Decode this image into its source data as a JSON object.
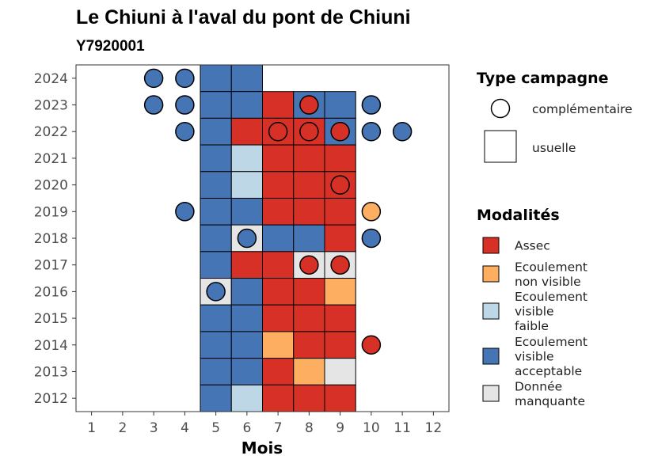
{
  "chart_data": {
    "type": "heatmap",
    "title": "Le Chiuni à l'aval du pont de Chiuni",
    "subtitle": "Y7920001",
    "xlabel": "Mois",
    "ylabel": "",
    "x_ticks": [
      "1",
      "2",
      "3",
      "4",
      "5",
      "6",
      "7",
      "8",
      "9",
      "10",
      "11",
      "12"
    ],
    "y_ticks": [
      "2012",
      "2013",
      "2014",
      "2015",
      "2016",
      "2017",
      "2018",
      "2019",
      "2020",
      "2021",
      "2022",
      "2023",
      "2024"
    ],
    "xlim": [
      0.5,
      12.5
    ],
    "ylim": [
      2011.5,
      2024.5
    ],
    "colors": {
      "Assec": "#d73027",
      "Ecoulement non visible": "#fdae61",
      "Ecoulement visible faible": "#bdd7e7",
      "Ecoulement visible acceptable": "#4575b4",
      "Donnée manquante": "#e5e5e5"
    },
    "usuelle": [
      {
        "year": 2024,
        "months": [
          "Ecoulement visible acceptable",
          "Ecoulement visible acceptable"
        ],
        "start_month": 5
      },
      {
        "year": 2023,
        "months": [
          "Ecoulement visible acceptable",
          "Ecoulement visible acceptable",
          "Assec",
          "Ecoulement visible acceptable",
          "Ecoulement visible acceptable"
        ],
        "start_month": 5
      },
      {
        "year": 2022,
        "months": [
          "Ecoulement visible acceptable",
          "Assec",
          "Assec",
          "Assec",
          "Ecoulement visible acceptable"
        ],
        "start_month": 5
      },
      {
        "year": 2021,
        "months": [
          "Ecoulement visible acceptable",
          "Ecoulement visible faible",
          "Assec",
          "Assec",
          "Assec"
        ],
        "start_month": 5
      },
      {
        "year": 2020,
        "months": [
          "Ecoulement visible acceptable",
          "Ecoulement visible faible",
          "Assec",
          "Assec",
          "Assec"
        ],
        "start_month": 5
      },
      {
        "year": 2019,
        "months": [
          "Ecoulement visible acceptable",
          "Ecoulement visible acceptable",
          "Assec",
          "Assec",
          "Assec"
        ],
        "start_month": 5
      },
      {
        "year": 2018,
        "months": [
          "Ecoulement visible acceptable",
          "Donnée manquante",
          "Ecoulement visible acceptable",
          "Ecoulement visible acceptable",
          "Assec"
        ],
        "start_month": 5
      },
      {
        "year": 2017,
        "months": [
          "Ecoulement visible acceptable",
          "Assec",
          "Assec",
          "Donnée manquante",
          "Donnée manquante"
        ],
        "start_month": 5
      },
      {
        "year": 2016,
        "months": [
          "Donnée manquante",
          "Ecoulement visible acceptable",
          "Assec",
          "Assec",
          "Ecoulement non visible"
        ],
        "start_month": 5
      },
      {
        "year": 2015,
        "months": [
          "Ecoulement visible acceptable",
          "Ecoulement visible acceptable",
          "Assec",
          "Assec",
          "Assec"
        ],
        "start_month": 5
      },
      {
        "year": 2014,
        "months": [
          "Ecoulement visible acceptable",
          "Ecoulement visible acceptable",
          "Ecoulement non visible",
          "Assec",
          "Assec"
        ],
        "start_month": 5
      },
      {
        "year": 2013,
        "months": [
          "Ecoulement visible acceptable",
          "Ecoulement visible acceptable",
          "Assec",
          "Ecoulement non visible",
          "Donnée manquante"
        ],
        "start_month": 5
      },
      {
        "year": 2012,
        "months": [
          "Ecoulement visible acceptable",
          "Ecoulement visible faible",
          "Assec",
          "Assec",
          "Assec"
        ],
        "start_month": 5
      }
    ],
    "complementaire": [
      {
        "year": 2024,
        "month": 3,
        "modalite": "Ecoulement visible acceptable"
      },
      {
        "year": 2024,
        "month": 4,
        "modalite": "Ecoulement visible acceptable"
      },
      {
        "year": 2023,
        "month": 3,
        "modalite": "Ecoulement visible acceptable"
      },
      {
        "year": 2023,
        "month": 4,
        "modalite": "Ecoulement visible acceptable"
      },
      {
        "year": 2023,
        "month": 8,
        "modalite": "Assec"
      },
      {
        "year": 2023,
        "month": 10,
        "modalite": "Ecoulement visible acceptable"
      },
      {
        "year": 2022,
        "month": 4,
        "modalite": "Ecoulement visible acceptable"
      },
      {
        "year": 2022,
        "month": 7,
        "modalite": "Assec"
      },
      {
        "year": 2022,
        "month": 8,
        "modalite": "Assec"
      },
      {
        "year": 2022,
        "month": 9,
        "modalite": "Assec"
      },
      {
        "year": 2022,
        "month": 10,
        "modalite": "Ecoulement visible acceptable"
      },
      {
        "year": 2022,
        "month": 11,
        "modalite": "Ecoulement visible acceptable"
      },
      {
        "year": 2020,
        "month": 9,
        "modalite": "Assec"
      },
      {
        "year": 2019,
        "month": 4,
        "modalite": "Ecoulement visible acceptable"
      },
      {
        "year": 2019,
        "month": 10,
        "modalite": "Ecoulement non visible"
      },
      {
        "year": 2018,
        "month": 6,
        "modalite": "Ecoulement visible acceptable"
      },
      {
        "year": 2018,
        "month": 10,
        "modalite": "Ecoulement visible acceptable"
      },
      {
        "year": 2017,
        "month": 8,
        "modalite": "Assec"
      },
      {
        "year": 2017,
        "month": 9,
        "modalite": "Assec"
      },
      {
        "year": 2016,
        "month": 5,
        "modalite": "Ecoulement visible acceptable"
      },
      {
        "year": 2014,
        "month": 10,
        "modalite": "Assec"
      }
    ],
    "legend_type": {
      "title": "Type campagne",
      "items": [
        "complémentaire",
        "usuelle"
      ]
    },
    "legend_modalites": {
      "title": "Modalités",
      "items": [
        {
          "key": "Assec",
          "lines": [
            "Assec"
          ]
        },
        {
          "key": "Ecoulement non visible",
          "lines": [
            "Ecoulement",
            "non visible"
          ]
        },
        {
          "key": "Ecoulement visible faible",
          "lines": [
            "Ecoulement",
            "visible",
            "faible"
          ]
        },
        {
          "key": "Ecoulement visible acceptable",
          "lines": [
            "Ecoulement",
            "visible",
            "acceptable"
          ]
        },
        {
          "key": "Donnée manquante",
          "lines": [
            "Donnée",
            "manquante"
          ]
        }
      ]
    },
    "legend_position": "right",
    "grid": false
  }
}
